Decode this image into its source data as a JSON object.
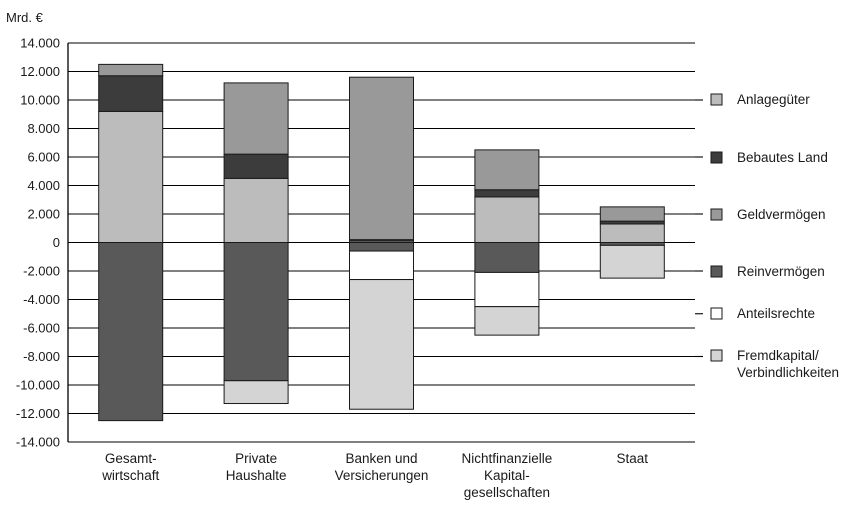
{
  "chart_data": {
    "type": "bar",
    "stacked": true,
    "unit_label": "Mrd. €",
    "ylim": [
      -14000,
      14000
    ],
    "yticks": [
      14000,
      12000,
      10000,
      8000,
      6000,
      4000,
      2000,
      0,
      -2000,
      -4000,
      -6000,
      -8000,
      -10000,
      -12000,
      -14000
    ],
    "ytick_labels": [
      "14.000",
      "12.000",
      "10.000",
      "8.000",
      "6.000",
      "4.000",
      "2.000",
      "0",
      "-2.000",
      "-4.000",
      "-6.000",
      "-8.000",
      "-10.000",
      "-12.000",
      "-14.000"
    ],
    "grid": true,
    "legend_position": "right",
    "categories": [
      [
        "Gesamt-",
        "wirtschaft"
      ],
      [
        "Private",
        "Haushalte"
      ],
      [
        "Banken und",
        "Versicherungen"
      ],
      [
        "Nichtfinanzielle",
        "Kapital-",
        "gesellschaften"
      ],
      [
        "Staat"
      ]
    ],
    "series": [
      {
        "name": "Anlagegüter",
        "side": "asset",
        "color": "#bcbcbc",
        "values": [
          9200,
          4500,
          100,
          3200,
          1300
        ]
      },
      {
        "name": "Bebautes Land",
        "side": "asset",
        "color": "#3c3c3c",
        "values": [
          2500,
          1700,
          100,
          500,
          200
        ]
      },
      {
        "name": "Geldvermögen",
        "side": "asset",
        "color": "#999999",
        "values": [
          800,
          5000,
          11400,
          2800,
          1000
        ]
      },
      {
        "name": "Reinvermögen",
        "side": "liability",
        "color": "#595959",
        "values": [
          -12500,
          -9700,
          -600,
          -2100,
          -200
        ]
      },
      {
        "name": "Anteilsrechte",
        "side": "liability",
        "color": "#ffffff",
        "values": [
          0,
          0,
          -2000,
          -2400,
          0
        ]
      },
      {
        "name": "Fremdkapital/ Verbindlichkeiten",
        "legend_lines": [
          "Fremdkapital/",
          "Verbindlichkeiten"
        ],
        "side": "liability",
        "color": "#d4d4d4",
        "values": [
          0,
          -1600,
          -9100,
          -2000,
          -2300
        ]
      }
    ]
  }
}
